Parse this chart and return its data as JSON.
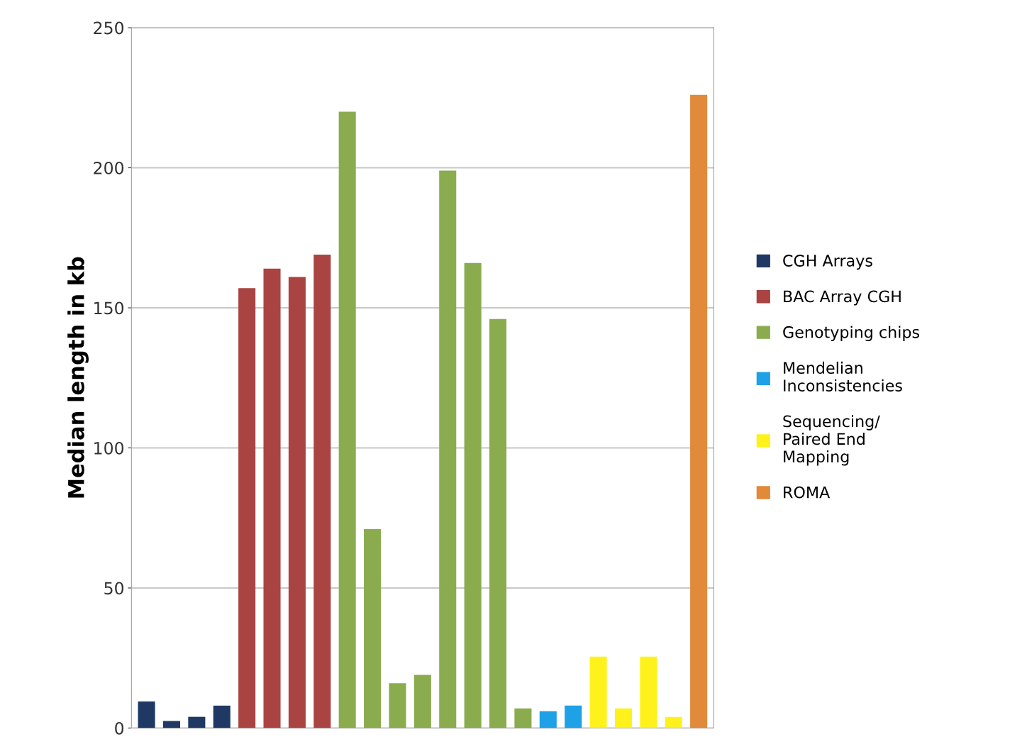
{
  "chart_data": {
    "type": "bar",
    "ylabel": "Median length in kb",
    "categories": [
      null,
      null,
      null,
      null,
      null,
      null,
      null,
      null,
      null,
      null,
      null,
      null,
      null,
      null,
      null,
      null,
      null,
      null,
      null,
      null,
      null,
      null,
      null
    ],
    "series": [
      {
        "name": "CGH Arrays",
        "color": "#1f3864",
        "values": [
          9.5,
          2.5,
          4,
          8,
          null,
          null,
          null,
          null,
          null,
          null,
          null,
          null,
          null,
          null,
          null,
          null,
          null,
          null,
          null,
          null,
          null,
          null,
          null
        ]
      },
      {
        "name": "BAC Array CGH",
        "color": "#a94442",
        "values": [
          null,
          null,
          null,
          null,
          157,
          164,
          161,
          169,
          null,
          null,
          null,
          null,
          null,
          null,
          null,
          null,
          null,
          null,
          null,
          null,
          null,
          null,
          null
        ]
      },
      {
        "name": "Genotyping chips",
        "color": "#8aac4e",
        "values": [
          null,
          null,
          null,
          null,
          null,
          null,
          null,
          null,
          220,
          71,
          16,
          19,
          199,
          166,
          146,
          7,
          null,
          null,
          null,
          null,
          null,
          null,
          null
        ]
      },
      {
        "name": "Mendelian Inconsistencies",
        "color": "#1ea1e6",
        "values": [
          null,
          null,
          null,
          null,
          null,
          null,
          null,
          null,
          null,
          null,
          null,
          null,
          null,
          null,
          null,
          null,
          6,
          8,
          null,
          null,
          null,
          null,
          null
        ]
      },
      {
        "name": "Sequencing/ Paired End Mapping",
        "color": "#fff21c",
        "values": [
          null,
          null,
          null,
          null,
          null,
          null,
          null,
          null,
          null,
          null,
          null,
          null,
          null,
          null,
          null,
          null,
          null,
          null,
          25.5,
          7,
          25.5,
          4,
          null
        ]
      },
      {
        "name": "ROMA",
        "color": "#e08a3a",
        "values": [
          null,
          null,
          null,
          null,
          null,
          null,
          null,
          null,
          null,
          null,
          null,
          null,
          null,
          null,
          null,
          null,
          null,
          null,
          null,
          null,
          null,
          null,
          226
        ]
      }
    ],
    "ylim": [
      0,
      250
    ],
    "yticks": [
      0,
      50,
      100,
      150,
      200,
      250
    ],
    "grid": "y",
    "legend": "right"
  }
}
